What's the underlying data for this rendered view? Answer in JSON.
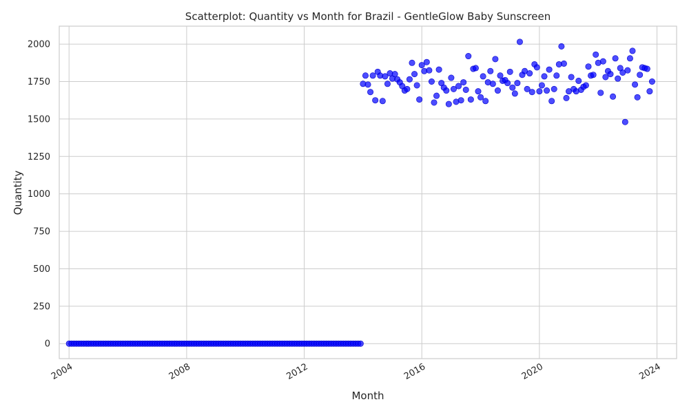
{
  "chart_data": {
    "type": "scatter",
    "title": "Scatterplot: Quantity vs Month for Brazil - GentleGlow Baby Sunscreen",
    "xlabel": "Month",
    "ylabel": "Quantity",
    "xlim": [
      "2003-09-01",
      "2024-09-01"
    ],
    "ylim": [
      -100,
      2120
    ],
    "x_ticks": [
      "2004",
      "2008",
      "2012",
      "2016",
      "2020",
      "2024"
    ],
    "y_ticks": [
      0,
      250,
      500,
      750,
      1000,
      1250,
      1500,
      1750,
      2000
    ],
    "grid": true,
    "color": "#0000ff",
    "x_start": "2004-01",
    "x_end": "2023-12",
    "x_frequency": "monthly",
    "y": [
      0,
      0,
      0,
      0,
      0,
      0,
      0,
      0,
      0,
      0,
      0,
      0,
      0,
      0,
      0,
      0,
      0,
      0,
      0,
      0,
      0,
      0,
      0,
      0,
      0,
      0,
      0,
      0,
      0,
      0,
      0,
      0,
      0,
      0,
      0,
      0,
      0,
      0,
      0,
      0,
      0,
      0,
      0,
      0,
      0,
      0,
      0,
      0,
      0,
      0,
      0,
      0,
      0,
      0,
      0,
      0,
      0,
      0,
      0,
      0,
      0,
      0,
      0,
      0,
      0,
      0,
      0,
      0,
      0,
      0,
      0,
      0,
      0,
      0,
      0,
      0,
      0,
      0,
      0,
      0,
      0,
      0,
      0,
      0,
      0,
      0,
      0,
      0,
      0,
      0,
      0,
      0,
      0,
      0,
      0,
      0,
      0,
      0,
      0,
      0,
      0,
      0,
      0,
      0,
      0,
      0,
      0,
      0,
      0,
      0,
      0,
      0,
      0,
      0,
      0,
      0,
      0,
      0,
      0,
      0,
      1735,
      1790,
      1730,
      1680,
      1790,
      1625,
      1815,
      1790,
      1620,
      1785,
      1735,
      1805,
      1770,
      1800,
      1765,
      1745,
      1720,
      1690,
      1700,
      1765,
      1875,
      1800,
      1725,
      1630,
      1860,
      1820,
      1880,
      1825,
      1750,
      1610,
      1655,
      1830,
      1740,
      1710,
      1690,
      1600,
      1775,
      1700,
      1615,
      1720,
      1625,
      1745,
      1695,
      1920,
      1630,
      1835,
      1840,
      1685,
      1645,
      1785,
      1620,
      1745,
      1820,
      1735,
      1900,
      1690,
      1790,
      1755,
      1760,
      1740,
      1815,
      1710,
      1670,
      1740,
      2015,
      1795,
      1820,
      1700,
      1805,
      1680,
      1865,
      1845,
      1685,
      1725,
      1785,
      1690,
      1830,
      1620,
      1700,
      1790,
      1865,
      1985,
      1870,
      1640,
      1685,
      1780,
      1700,
      1685,
      1755,
      1695,
      1715,
      1725,
      1850,
      1790,
      1795,
      1930,
      1875,
      1675,
      1885,
      1780,
      1820,
      1800,
      1650,
      1905,
      1770,
      1840,
      1810,
      1480,
      1825,
      1905,
      1955,
      1730,
      1645,
      1795,
      1845,
      1840,
      1835,
      1685,
      1750
    ]
  }
}
